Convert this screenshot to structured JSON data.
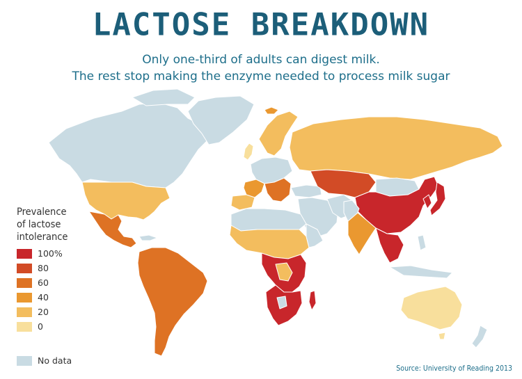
{
  "title": "LACTOSE BREAKDOWN",
  "subtitle_line1": "Only one-third of adults can digest milk.",
  "subtitle_line2": "The rest stop making the enzyme needed to process milk sugar",
  "legend": {
    "title": [
      "Prevalence",
      "of lactose",
      "intolerance"
    ],
    "items": [
      {
        "label": "100%",
        "color": "#c8262b"
      },
      {
        "label": "80",
        "color": "#d24b26"
      },
      {
        "label": "60",
        "color": "#de7224"
      },
      {
        "label": "40",
        "color": "#ea9830"
      },
      {
        "label": "20",
        "color": "#f3bd5e"
      },
      {
        "label": "0",
        "color": "#f8df9c"
      }
    ],
    "no_data": {
      "label": "No data",
      "color": "#c9dbe3"
    }
  },
  "source": "Source: University of Reading 2013",
  "colors": {
    "title": "#1c5e79",
    "subtitle": "#1d6e8a",
    "no_data_land": "#c9dbe3",
    "border": "#ffffff"
  }
}
